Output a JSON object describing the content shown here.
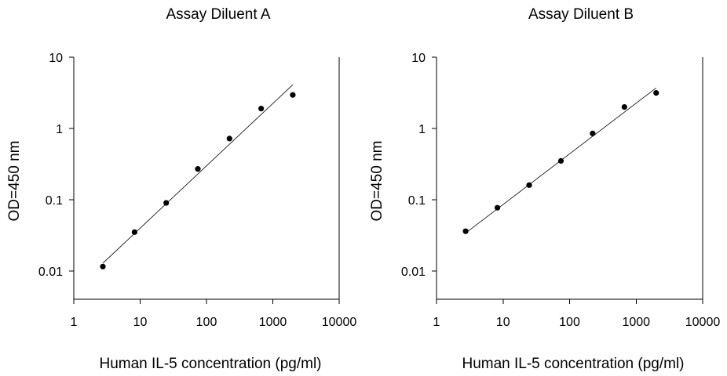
{
  "chart_data": [
    {
      "type": "scatter",
      "title": "Assay Diluent A",
      "xlabel": "Human IL-5 concentration (pg/ml)",
      "ylabel": "OD=450 nm",
      "x_scale": "log",
      "y_scale": "log",
      "xlim": [
        1,
        10000
      ],
      "ylim": [
        0.004,
        10
      ],
      "x_ticks": [
        1,
        10,
        100,
        1000,
        10000
      ],
      "x_tick_labels": [
        "1",
        "10",
        "100",
        "1000",
        "10000"
      ],
      "y_ticks": [
        0.01,
        0.1,
        1,
        10
      ],
      "y_tick_labels": [
        "0.01",
        "0.1",
        "1",
        "10"
      ],
      "grid": false,
      "series": [
        {
          "x": [
            2.74,
            8.23,
            24.7,
            74.1,
            222,
            667,
            2000
          ],
          "y": [
            0.0115,
            0.035,
            0.09,
            0.27,
            0.72,
            1.9,
            2.95
          ]
        }
      ],
      "fit_line": {
        "x": [
          2.74,
          2000
        ],
        "y": [
          0.0128,
          4.1
        ]
      }
    },
    {
      "type": "scatter",
      "title": "Assay Diluent B",
      "xlabel": "Human IL-5 concentration (pg/ml)",
      "ylabel": "OD=450 nm",
      "x_scale": "log",
      "y_scale": "log",
      "xlim": [
        1,
        10000
      ],
      "ylim": [
        0.004,
        10
      ],
      "x_ticks": [
        1,
        10,
        100,
        1000,
        10000
      ],
      "x_tick_labels": [
        "1",
        "10",
        "100",
        "1000",
        "10000"
      ],
      "y_ticks": [
        0.01,
        0.1,
        1,
        10
      ],
      "y_tick_labels": [
        "0.01",
        "0.1",
        "1",
        "10"
      ],
      "grid": false,
      "series": [
        {
          "x": [
            2.74,
            8.23,
            24.7,
            74.1,
            222,
            667,
            2000
          ],
          "y": [
            0.036,
            0.077,
            0.16,
            0.35,
            0.85,
            2.0,
            3.15
          ]
        }
      ],
      "fit_line": {
        "x": [
          2.74,
          2000
        ],
        "y": [
          0.034,
          3.7
        ]
      }
    }
  ]
}
